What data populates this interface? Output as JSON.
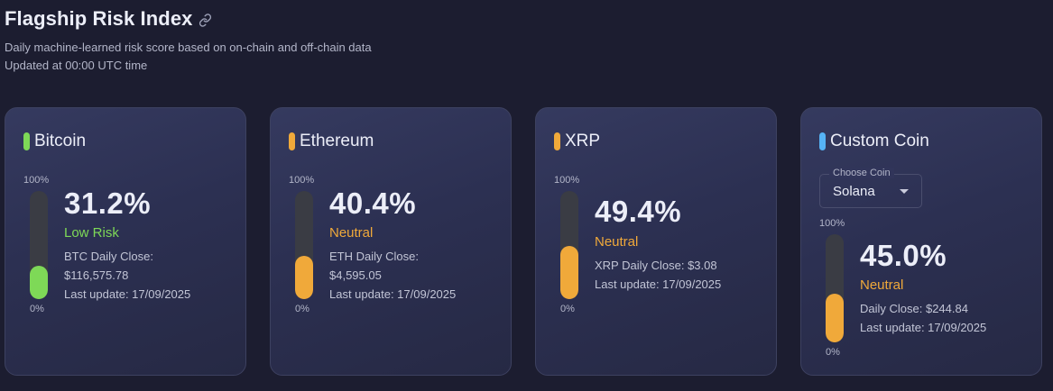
{
  "header": {
    "title": "Flagship Risk Index",
    "subtitle": "Daily machine-learned risk score based on on-chain and off-chain data",
    "updated": "Updated at 00:00 UTC time"
  },
  "colors": {
    "low_risk": "#7ed957",
    "neutral": "#f0a93a",
    "custom": "#56b3f5"
  },
  "gauge": {
    "top_label": "100%",
    "bottom_label": "0%"
  },
  "cards": [
    {
      "name": "Bitcoin",
      "percent": "31.2%",
      "fill_fraction": 0.312,
      "risk_label": "Low Risk",
      "accent": "#7ed957",
      "close_line1": "BTC Daily Close:",
      "close_line2": "$116,575.78",
      "last_update": "Last update: 17/09/2025"
    },
    {
      "name": "Ethereum",
      "percent": "40.4%",
      "fill_fraction": 0.404,
      "risk_label": "Neutral",
      "accent": "#f0a93a",
      "close_line1": "ETH Daily Close:",
      "close_line2": "$4,595.05",
      "last_update": "Last update: 17/09/2025"
    },
    {
      "name": "XRP",
      "percent": "49.4%",
      "fill_fraction": 0.494,
      "risk_label": "Neutral",
      "accent": "#f0a93a",
      "close_line1": "XRP Daily Close: $3.08",
      "last_update": "Last update: 17/09/2025"
    },
    {
      "name": "Custom Coin",
      "percent": "45.0%",
      "fill_fraction": 0.45,
      "risk_label": "Neutral",
      "accent": "#56b3f5",
      "fill_color": "#f0a93a",
      "select_label": "Choose Coin",
      "select_value": "Solana",
      "close_line1": "Daily Close: $244.84",
      "last_update": "Last update: 17/09/2025"
    }
  ]
}
